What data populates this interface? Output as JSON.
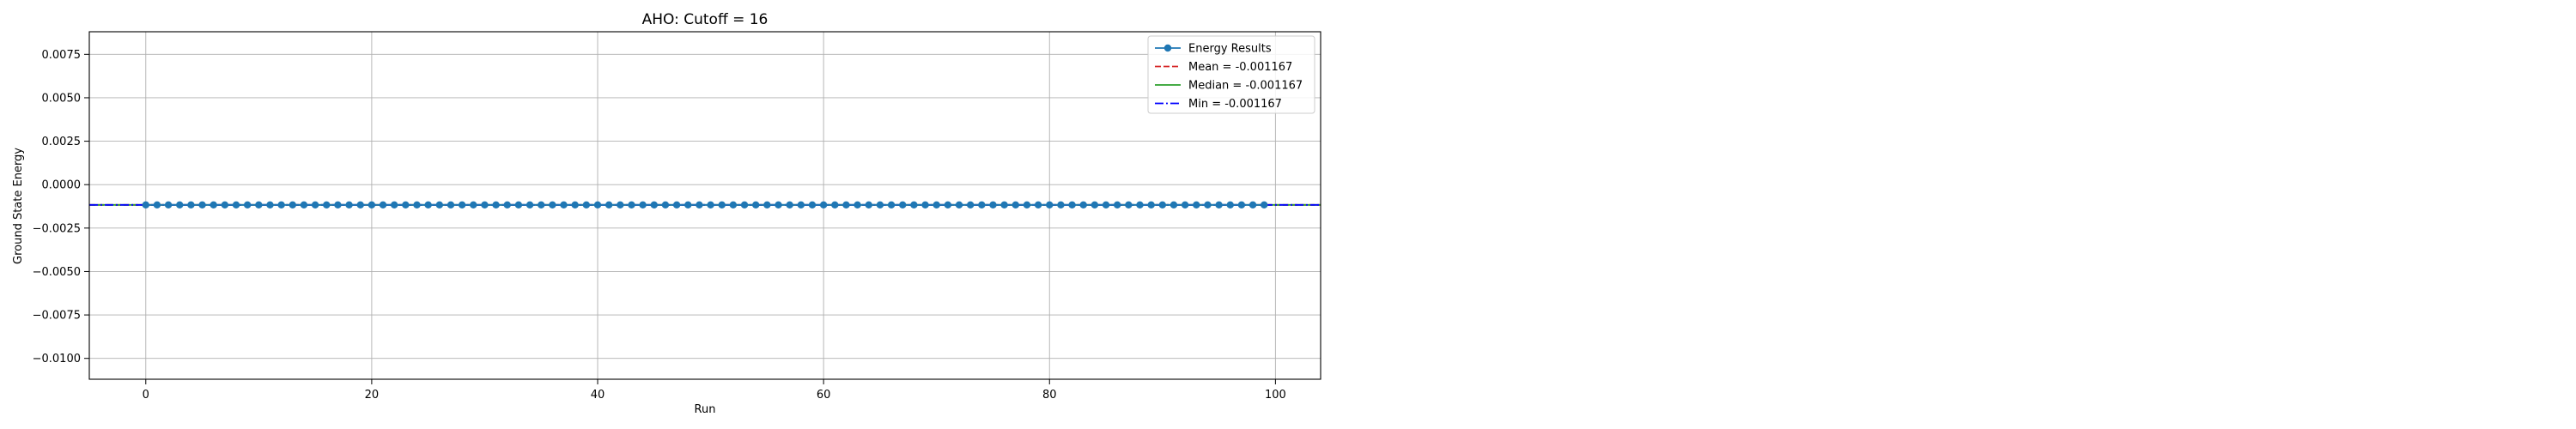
{
  "chart_data": {
    "type": "line",
    "title": "AHO: Cutoff = 16",
    "xlabel": "Run",
    "ylabel": "Ground State Energy",
    "xlim": [
      -5,
      104
    ],
    "ylim": [
      -0.0112,
      0.0088
    ],
    "xticks": [
      0,
      20,
      40,
      60,
      80,
      100
    ],
    "yticks": [
      0.0075,
      0.005,
      0.0025,
      0.0,
      -0.0025,
      -0.005,
      -0.0075,
      -0.01
    ],
    "xtick_labels": [
      "0",
      "20",
      "40",
      "60",
      "80",
      "100"
    ],
    "ytick_labels": [
      "0.0075",
      "0.0050",
      "0.0025",
      "0.0000",
      "−0.0025",
      "−0.0050",
      "−0.0075",
      "−0.0100"
    ],
    "grid": true,
    "legend_position": "top-right",
    "series": [
      {
        "name": "Energy Results",
        "style": "line-with-circle-markers",
        "color": "#1f77b4",
        "x_start": 0,
        "x_end": 99,
        "constant_value": -0.001167
      }
    ],
    "reference_lines": [
      {
        "name": "Mean = -0.001167",
        "value": -0.001167,
        "color": "#d62728",
        "dash": "dashed"
      },
      {
        "name": "Median = -0.001167",
        "value": -0.001167,
        "color": "#2ca02c",
        "dash": "solid"
      },
      {
        "name": "Min = -0.001167",
        "value": -0.001167,
        "color": "#0000ff",
        "dash": "dashdot"
      }
    ]
  }
}
